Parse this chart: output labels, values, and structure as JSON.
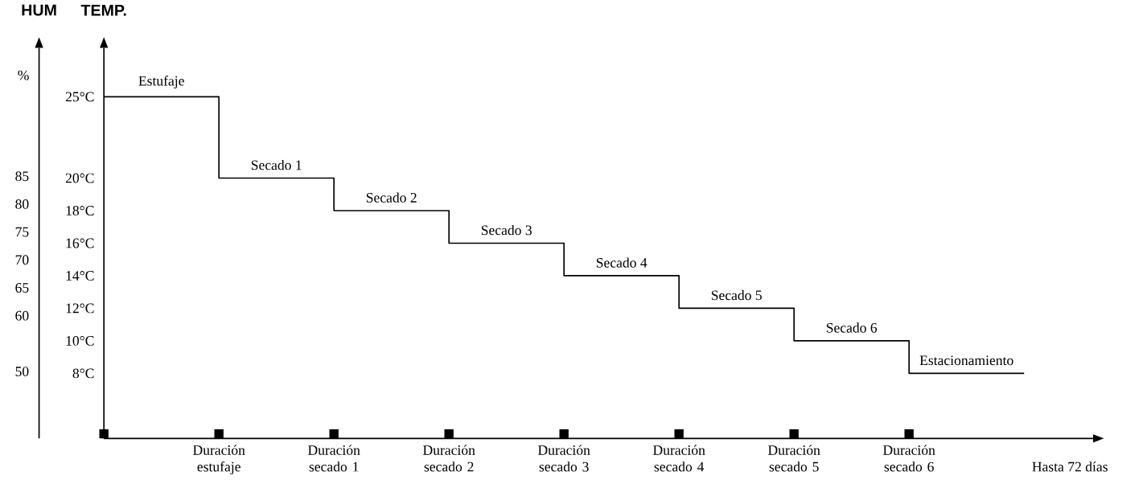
{
  "chart_data": {
    "type": "step",
    "categories": [
      null,
      "Duración estufaje",
      "Duración secado 1",
      "Duración secado 2",
      "Duración secado 3",
      "Duración secado 4",
      "Duración secado 5",
      "Duración secado 6",
      null
    ],
    "series": [
      {
        "color": "#000000",
        "values": [
          25,
          20,
          18,
          16,
          14,
          12,
          10,
          8,
          8
        ]
      }
    ],
    "xlabel": "Hasta 72 días",
    "ylabel": "TEMP.",
    "y2label": "HUM",
    "ylim": [
      4,
      28
    ],
    "yticks": [
      {
        "value": 8,
        "label": "8°C"
      },
      {
        "value": 10,
        "label": "10°C"
      },
      {
        "value": 12,
        "label": "12°C"
      },
      {
        "value": 14,
        "label": "14°C"
      },
      {
        "value": 16,
        "label": "16°C"
      },
      {
        "value": 18,
        "label": "18°C"
      },
      {
        "value": 20,
        "label": "20°C"
      },
      {
        "value": 25,
        "label": "25°C"
      }
    ],
    "y2lim": [
      38,
      108
    ],
    "y2ticks": [
      50,
      60,
      65,
      70,
      75,
      80,
      85
    ],
    "annotations": [
      "%",
      {
        "text": "Estufaje",
        "y": 25
      },
      {
        "text": "Secado 1",
        "y": 20
      },
      {
        "text": "Secado 2",
        "y": 18
      },
      {
        "text": "Secado 3",
        "y": 16
      },
      {
        "text": "Secado 4",
        "y": 14
      },
      {
        "text": "Secado 5",
        "y": 12
      },
      {
        "text": "Secado 6",
        "y": 10
      },
      {
        "text": "Estacionamiento",
        "y": 8
      }
    ],
    "grid": false,
    "marker": "none",
    "line_style": "solid"
  }
}
